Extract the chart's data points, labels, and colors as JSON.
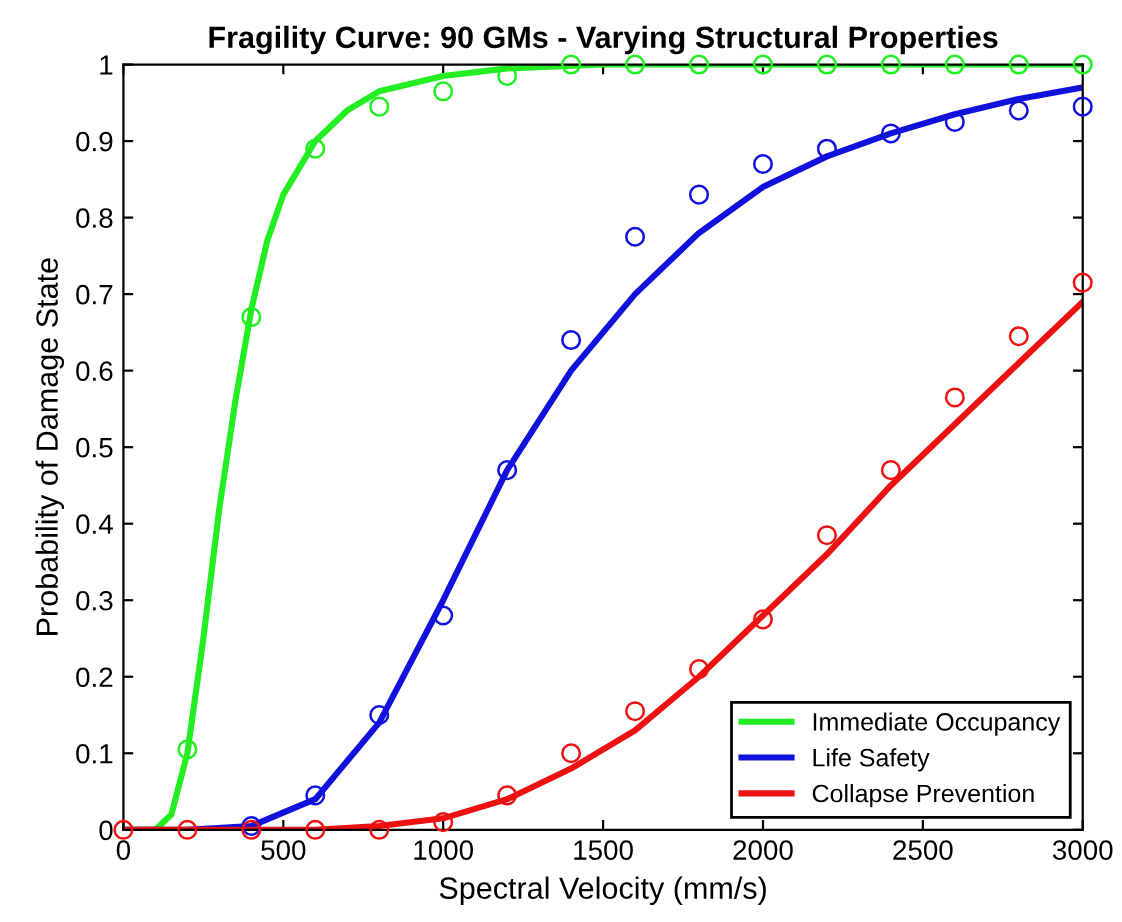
{
  "chart_data": {
    "type": "line",
    "title": "Fragility Curve: 90 GMs - Varying Structural Properties",
    "xlabel": "Spectral Velocity (mm/s)",
    "ylabel": "Probability of Damage State",
    "xlim": [
      0,
      3000
    ],
    "ylim": [
      0,
      1
    ],
    "xticks": [
      0,
      500,
      1000,
      1500,
      2000,
      2500,
      3000
    ],
    "yticks": [
      0,
      0.1,
      0.2,
      0.3,
      0.4,
      0.5,
      0.6,
      0.7,
      0.8,
      0.9,
      1
    ],
    "grid": false,
    "legend": "bottom right",
    "series": [
      {
        "name": "Immediate Occupancy",
        "color": "#22ee22",
        "marker": "none",
        "x": [
          0,
          100,
          150,
          200,
          250,
          300,
          350,
          400,
          450,
          500,
          600,
          700,
          800,
          1000,
          1200,
          1500,
          2000,
          3000
        ],
        "values": [
          0,
          0,
          0.02,
          0.1,
          0.25,
          0.42,
          0.56,
          0.68,
          0.77,
          0.83,
          0.9,
          0.94,
          0.965,
          0.985,
          0.995,
          1,
          1,
          1
        ]
      },
      {
        "name": "Life Safety",
        "color": "#1111dd",
        "marker": "none",
        "x": [
          0,
          200,
          400,
          600,
          800,
          1000,
          1200,
          1400,
          1600,
          1800,
          2000,
          2200,
          2400,
          2600,
          2800,
          3000
        ],
        "values": [
          0,
          0,
          0.005,
          0.04,
          0.14,
          0.3,
          0.47,
          0.6,
          0.7,
          0.78,
          0.84,
          0.88,
          0.91,
          0.935,
          0.955,
          0.97
        ]
      },
      {
        "name": "Collapse Prevention",
        "color": "#ee1111",
        "marker": "none",
        "x": [
          0,
          200,
          400,
          600,
          800,
          1000,
          1200,
          1400,
          1600,
          1800,
          2000,
          2200,
          2400,
          2600,
          2800,
          3000
        ],
        "values": [
          0,
          0,
          0,
          0,
          0.005,
          0.015,
          0.04,
          0.08,
          0.13,
          0.2,
          0.28,
          0.36,
          0.45,
          0.53,
          0.61,
          0.69
        ]
      },
      {
        "type": "scatter",
        "color": "#22ee22",
        "marker": "circle",
        "x": [
          200,
          400,
          600,
          800,
          1000,
          1200,
          1400,
          1600,
          1800,
          2000,
          2200,
          2400,
          2600,
          2800,
          3000
        ],
        "values": [
          0.105,
          0.67,
          0.89,
          0.945,
          0.965,
          0.985,
          1,
          1,
          1,
          1,
          1,
          1,
          1,
          1,
          1
        ]
      },
      {
        "type": "scatter",
        "color": "#1111dd",
        "marker": "circle",
        "x": [
          400,
          600,
          800,
          1000,
          1200,
          1400,
          1600,
          1800,
          2000,
          2200,
          2400,
          2600,
          2800,
          3000
        ],
        "values": [
          0.005,
          0.045,
          0.15,
          0.28,
          0.47,
          0.64,
          0.775,
          0.83,
          0.87,
          0.89,
          0.91,
          0.925,
          0.94,
          0.945
        ]
      },
      {
        "type": "scatter",
        "color": "#ee1111",
        "marker": "circle",
        "x": [
          0,
          200,
          400,
          600,
          800,
          1000,
          1200,
          1400,
          1600,
          1800,
          2000,
          2200,
          2400,
          2600,
          2800,
          3000
        ],
        "values": [
          0,
          0,
          0,
          0,
          0,
          0.01,
          0.045,
          0.1,
          0.155,
          0.21,
          0.275,
          0.385,
          0.47,
          0.565,
          0.645,
          0.715
        ]
      }
    ]
  }
}
